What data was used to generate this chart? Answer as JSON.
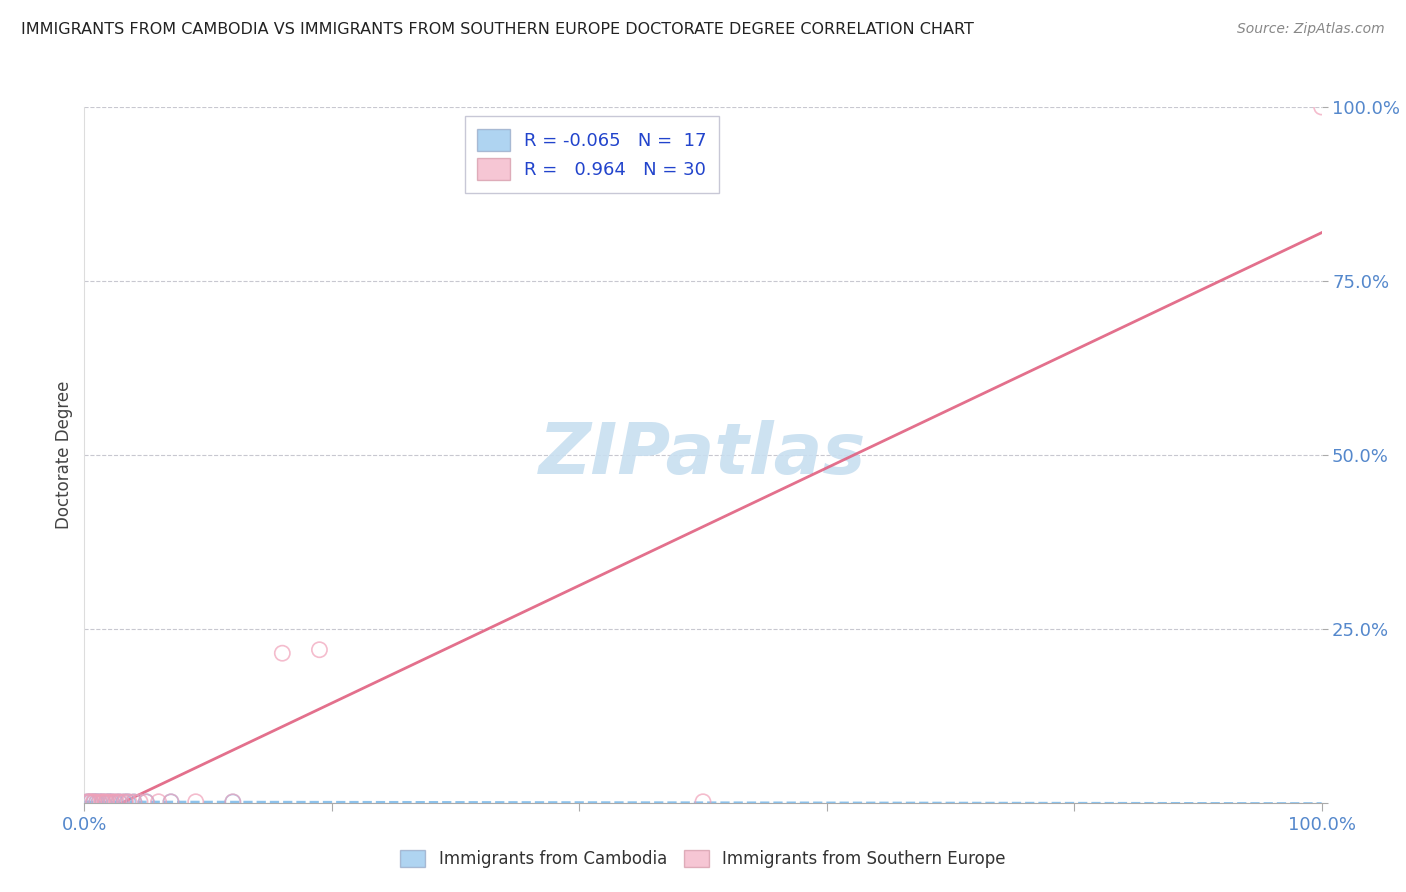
{
  "title": "IMMIGRANTS FROM CAMBODIA VS IMMIGRANTS FROM SOUTHERN EUROPE DOCTORATE DEGREE CORRELATION CHART",
  "source": "Source: ZipAtlas.com",
  "ylabel": "Doctorate Degree",
  "background_color": "#ffffff",
  "cambodia_scatter_color": "#7ab8e8",
  "cambodia_line_color": "#7ab8e8",
  "se_scatter_color": "#f0a0b8",
  "se_line_color": "#e06080",
  "axis_tick_color": "#5588cc",
  "watermark_color": "#c8dff0",
  "grid_color": "#c8c8d0",
  "legend_text_color": "#2244cc",
  "bottom_legend_text_color": "#333333",
  "cam_R": "-0.065",
  "cam_N": "17",
  "se_R": "0.964",
  "se_N": "30",
  "cam_scatter_x": [
    0.3,
    0.5,
    0.8,
    1.0,
    1.2,
    1.5,
    1.8,
    2.0,
    2.2,
    2.5,
    2.8,
    3.2,
    3.5,
    4.0,
    5.0,
    7.0,
    12.0
  ],
  "cam_scatter_y": [
    0.15,
    0.12,
    0.18,
    0.1,
    0.16,
    0.14,
    0.12,
    0.15,
    0.13,
    0.11,
    0.14,
    0.13,
    0.15,
    0.12,
    0.14,
    0.13,
    0.11
  ],
  "se_scatter_x": [
    0.2,
    0.4,
    0.5,
    0.7,
    0.8,
    1.0,
    1.2,
    1.4,
    1.5,
    1.7,
    1.8,
    2.0,
    2.2,
    2.4,
    2.6,
    2.8,
    3.0,
    3.3,
    3.6,
    4.0,
    4.5,
    5.0,
    6.0,
    7.0,
    9.0,
    12.0,
    16.0,
    19.0,
    50.0,
    100.0
  ],
  "se_scatter_y": [
    0.15,
    0.12,
    0.18,
    0.1,
    0.16,
    0.14,
    0.12,
    0.15,
    0.13,
    0.11,
    0.14,
    0.13,
    0.15,
    0.12,
    0.14,
    0.13,
    0.12,
    0.15,
    0.14,
    0.12,
    0.15,
    0.13,
    0.15,
    0.14,
    0.15,
    0.14,
    21.5,
    22.0,
    0.15,
    100.0
  ],
  "xtick_positions": [
    0,
    20,
    40,
    60,
    80,
    100
  ],
  "ytick_positions": [
    0,
    25,
    50,
    75,
    100
  ],
  "ytick_labels": [
    "",
    "25.0%",
    "50.0%",
    "75.0%",
    "100.0%"
  ]
}
